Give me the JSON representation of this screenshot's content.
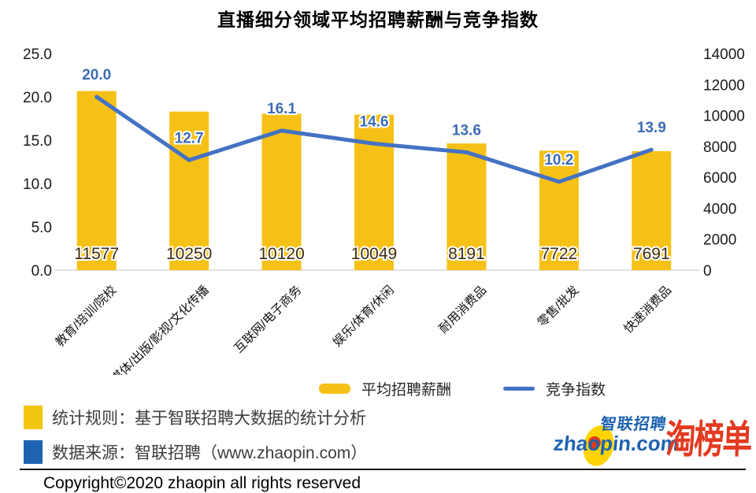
{
  "title": "直播细分领域平均招聘薪酬与竞争指数",
  "chart_data": {
    "type": "bar",
    "subtype": "bar+line combo",
    "categories": [
      "教育/培训/院校",
      "媒体/出版/影视/文化传播",
      "互联网/电子商务",
      "娱乐/体育/休闲",
      "耐用消费品",
      "零售/批发",
      "快速消费品"
    ],
    "series": [
      {
        "name": "平均招聘薪酬",
        "type": "bar",
        "axis": "right",
        "values": [
          11577,
          10250,
          10120,
          10049,
          8191,
          7722,
          7691
        ],
        "labels": [
          "11577",
          "10250",
          "10120",
          "10049",
          "8191",
          "7722",
          "7691"
        ],
        "color": "#f6c117"
      },
      {
        "name": "竞争指数",
        "type": "line",
        "axis": "left",
        "values": [
          20.0,
          12.7,
          16.1,
          14.6,
          13.6,
          10.2,
          13.9
        ],
        "labels": [
          "20.0",
          "12.7",
          "16.1",
          "14.6",
          "13.6",
          "10.2",
          "13.9"
        ],
        "color": "#4472c4"
      }
    ],
    "left_axis": {
      "min": 0,
      "max": 25,
      "ticks": [
        "25.0",
        "20.0",
        "15.0",
        "10.0",
        "5.0",
        "0.0"
      ]
    },
    "right_axis": {
      "min": 0,
      "max": 14000,
      "ticks": [
        "14000",
        "12000",
        "10000",
        "8000",
        "6000",
        "4000",
        "2000",
        "0"
      ]
    },
    "title": "直播细分领域平均招聘薪酬与竞争指数",
    "grid": false,
    "legend_position": "bottom"
  },
  "legend": {
    "salary": "平均招聘薪酬",
    "index": "竞争指数"
  },
  "footnotes": {
    "rule": "统计规则：基于智联招聘大数据的统计分析",
    "source": "数据来源：智联招聘（www.zhaopin.com）"
  },
  "copyright": "Copyright©2020 zhaopin all rights reserved",
  "logo": {
    "brand_cn": "智联招聘",
    "brand_en": "zhaopin.com",
    "partner": "淘榜单"
  },
  "colors": {
    "bar": "#f6c117",
    "line": "#4472c4",
    "point_label": "#3e6cb5",
    "bar_label": "#3f2c10",
    "square_yellow": "#f2c50f",
    "square_blue": "#1e63b0",
    "logo_blue": "#1e63b0",
    "logo_red": "#e23b20"
  }
}
